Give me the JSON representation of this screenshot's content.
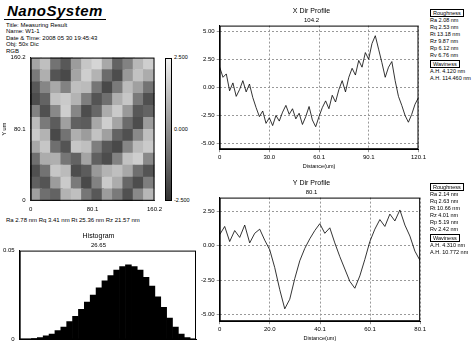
{
  "header": {
    "logo": "NanoSystem",
    "lines": [
      "Title: Measuring Result",
      "Name: W1-1",
      "Date & Time: 2008 05 30 19:45:43",
      "Obj: 50x Dic",
      "RGB"
    ]
  },
  "stats": [
    "Ra 2.78 nm",
    "Rq 3.41 nm",
    "Rt 25.36 nm",
    "Rz 21.57 nm"
  ],
  "chart_data": [
    {
      "type": "heatmap",
      "y_label": "Y um",
      "xlim": [
        0,
        160.2
      ],
      "xticks": [
        0,
        80.1,
        160.2
      ],
      "ylim": [
        0,
        160.2
      ],
      "yticks": [
        0,
        80.1,
        160.2
      ],
      "grid": false,
      "cells": [
        [
          0.5,
          1.2,
          -0.8,
          -1.5,
          0.3,
          1.4,
          1.8,
          0.6,
          -1.2,
          -0.4,
          1.0,
          1.6
        ],
        [
          -0.6,
          0.8,
          -1.6,
          -1.9,
          0.5,
          1.6,
          0.9,
          -1.0,
          -1.8,
          0.2,
          1.3,
          0.7
        ],
        [
          -1.5,
          -0.3,
          0.6,
          -0.4,
          1.2,
          1.1,
          -0.7,
          -1.9,
          -0.6,
          1.1,
          0.4,
          -0.8
        ],
        [
          -1.8,
          -1.2,
          1.3,
          1.5,
          0.9,
          -0.5,
          -1.6,
          -0.9,
          0.8,
          1.4,
          -0.6,
          -1.7
        ],
        [
          -0.4,
          -1.7,
          -0.2,
          1.6,
          -0.3,
          -1.8,
          -1.1,
          0.7,
          1.5,
          0.2,
          -1.5,
          -1.2
        ],
        [
          1.1,
          -0.6,
          -1.4,
          0.4,
          -1.3,
          -1.4,
          0.6,
          1.6,
          0.5,
          -1.0,
          -1.8,
          0.3
        ],
        [
          1.5,
          0.9,
          -1.9,
          -0.8,
          0.8,
          0.3,
          1.3,
          0.4,
          -1.2,
          -1.7,
          -0.2,
          1.2
        ],
        [
          0.6,
          1.4,
          -0.9,
          -1.6,
          1.4,
          1.2,
          -0.5,
          -1.5,
          -1.9,
          -0.3,
          1.1,
          1.5
        ],
        [
          -0.9,
          0.7,
          0.8,
          -0.7,
          -1.2,
          0.5,
          -1.3,
          -1.8,
          -0.4,
          1.3,
          1.6,
          -0.2
        ],
        [
          -1.7,
          -0.8,
          1.4,
          1.1,
          -1.8,
          -1.4,
          0.2,
          0.9,
          1.2,
          0.6,
          -0.9,
          -1.6
        ],
        [
          -1.3,
          -1.6,
          0.3,
          1.5,
          -0.6,
          -1.9,
          -0.4,
          1.5,
          0.7,
          -1.1,
          -1.8,
          -0.5
        ],
        [
          0.4,
          -0.9,
          -1.2,
          0.9,
          1.2,
          -0.7,
          -1.5,
          0.3,
          -0.6,
          -1.7,
          -0.2,
          1.0
        ]
      ],
      "colorbar": {
        "range": [
          -2.5,
          2.5
        ],
        "ticks": [
          {
            "value": 2.5,
            "label": "2.500"
          },
          {
            "value": 0,
            "label": "0.000"
          },
          {
            "value": -2.5,
            "label": "-2.500"
          }
        ]
      }
    },
    {
      "type": "histogram",
      "title": "Histogram",
      "cursor_label": "26.65",
      "bins": [
        -15,
        -14,
        -13,
        -12,
        -11,
        -10,
        -9,
        -8,
        -7,
        -6,
        -5,
        -4,
        -3,
        -2,
        -1,
        0,
        1,
        2,
        3,
        4,
        5,
        6,
        7,
        8,
        9,
        10,
        11,
        12,
        13,
        14,
        15
      ],
      "values": [
        0,
        0,
        0.0005,
        0.001,
        0.002,
        0.003,
        0.005,
        0.007,
        0.01,
        0.013,
        0.017,
        0.021,
        0.025,
        0.029,
        0.033,
        0.036,
        0.039,
        0.041,
        0.042,
        0.041,
        0.039,
        0.035,
        0.03,
        0.024,
        0.018,
        0.012,
        0.007,
        0.003,
        0.001,
        0
      ],
      "color": "#000000",
      "xlim": [
        -15,
        15
      ],
      "ylim": [
        0,
        0.05
      ],
      "yticks": [
        0,
        0.05
      ],
      "tick_labels": "y",
      "grid": false
    },
    {
      "type": "line",
      "title": "X Dir Profile",
      "cursor_label": "104.2",
      "x_label": "Distance(um)",
      "x": [
        0,
        2,
        4,
        6,
        8,
        10,
        12,
        14,
        16,
        18,
        20,
        22,
        24,
        26,
        28,
        30,
        32,
        34,
        36,
        38,
        40,
        42,
        44,
        46,
        48,
        50,
        52,
        54,
        56,
        58,
        60,
        62,
        64,
        66,
        68,
        70,
        72,
        74,
        76,
        78,
        80,
        82,
        84,
        86,
        88,
        90,
        92,
        94,
        96,
        98,
        100,
        102,
        104,
        106,
        108,
        110,
        112,
        114,
        116,
        118,
        120.1
      ],
      "values": [
        1.8,
        0.9,
        1.2,
        -0.3,
        0.4,
        -0.8,
        -0.2,
        0.6,
        -0.4,
        0.3,
        -0.9,
        -1.8,
        -2.6,
        -2.1,
        -3.2,
        -2.7,
        -3.4,
        -2.5,
        -3.0,
        -2.2,
        -1.6,
        -2.4,
        -1.9,
        -2.8,
        -2.3,
        -3.3,
        -2.6,
        -1.7,
        -2.9,
        -3.5,
        -2.6,
        -1.8,
        -1.2,
        -1.9,
        -0.7,
        -1.3,
        -0.2,
        0.6,
        -0.4,
        0.9,
        1.7,
        1.1,
        2.4,
        1.8,
        3.1,
        2.5,
        3.9,
        4.6,
        3.4,
        2.2,
        0.9,
        1.8,
        2.3,
        0.6,
        -0.8,
        -1.6,
        -2.5,
        -3.1,
        -2.4,
        -1.5,
        -0.9
      ],
      "color": "#000000",
      "grid": true,
      "xlim": [
        0,
        120.1
      ],
      "xticks": [
        0,
        {
          "value": 30,
          "label": "30.0"
        },
        60.1,
        90.1,
        120.1
      ],
      "ylim": [
        -5.5,
        5.5
      ],
      "yticks": [
        {
          "value": -5,
          "label": "-5.00"
        },
        {
          "value": -2.5,
          "label": "-2.50"
        },
        {
          "value": 0,
          "label": "0.00"
        },
        {
          "value": 2.5,
          "label": "2.50"
        },
        {
          "value": 5,
          "label": "5.00"
        }
      ]
    },
    {
      "type": "line",
      "title": "Y Dir Profile",
      "cursor_label": "80.1",
      "x_label": "Distance(um)",
      "x": [
        0,
        2,
        4,
        6,
        8,
        10,
        12,
        14,
        16,
        18,
        20,
        22,
        24,
        26,
        28,
        30,
        32,
        34,
        36,
        38,
        40,
        42,
        44,
        46,
        48,
        50,
        52,
        54,
        56,
        58,
        60,
        62,
        64,
        66,
        68,
        70,
        72,
        74,
        76,
        78,
        80.1
      ],
      "values": [
        0.8,
        1.4,
        0.3,
        1.1,
        0.6,
        1.5,
        0.2,
        0.9,
        1.2,
        0.4,
        -0.3,
        -1.6,
        -3.2,
        -4.6,
        -3.9,
        -2.4,
        -1.1,
        -0.2,
        0.5,
        1.1,
        1.6,
        0.9,
        1.3,
        0.2,
        -0.8,
        -1.7,
        -2.6,
        -3.1,
        -2.2,
        -1.0,
        0.3,
        1.2,
        1.9,
        1.4,
        2.3,
        1.8,
        2.6,
        1.5,
        0.7,
        -0.4,
        -1.1
      ],
      "color": "#000000",
      "grid": true,
      "xlim": [
        0,
        80.1
      ],
      "xticks": [
        0,
        {
          "value": 20,
          "label": "20.0"
        },
        40.1,
        60.1,
        80.1
      ],
      "ylim": [
        -5.5,
        3.5
      ],
      "yticks": [
        {
          "value": -5,
          "label": "-5.00"
        },
        {
          "value": -2.5,
          "label": "-2.50"
        },
        {
          "value": 0,
          "label": "0.00"
        },
        {
          "value": 2.5,
          "label": "2.50"
        }
      ]
    }
  ],
  "panels": [
    [
      "Roughness",
      "Ra 2.08 nm",
      "Rq 2.53 nm",
      "Rt 13.18 nm",
      "Rz 9.87 nm",
      "Rp 6.12 nm",
      "Rv 6.76 nm",
      "Waviness",
      "A.H. 4.120 nm",
      "A.H. 114.460 nm"
    ],
    [
      "Roughness",
      "Ra 2.14 nm",
      "Rq 2.63 nm",
      "Rt 10.66 nm",
      "Rz 4.01 nm",
      "Rp 5.19 nm",
      "Rv 2.42 nm",
      "Waviness",
      "A.H. 4.310 nm",
      "A.H. 10.772 nm"
    ]
  ]
}
